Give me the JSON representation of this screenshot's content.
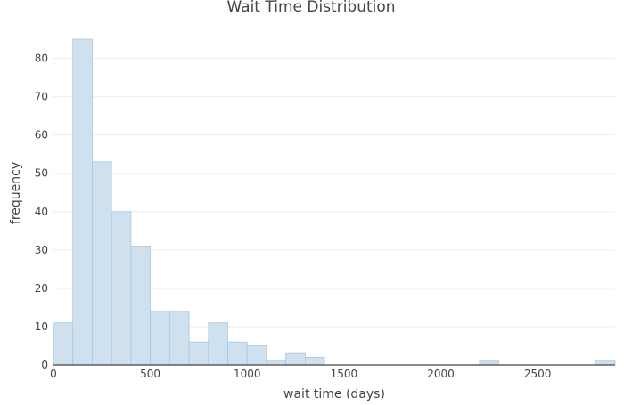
{
  "chart_data": {
    "type": "bar",
    "title": "Wait Time Distribution",
    "xlabel": "wait time (days)",
    "ylabel": "frequency",
    "bin_width": 100,
    "bins": [
      {
        "x0": 0,
        "x1": 100,
        "count": 11
      },
      {
        "x0": 100,
        "x1": 200,
        "count": 85
      },
      {
        "x0": 200,
        "x1": 300,
        "count": 53
      },
      {
        "x0": 300,
        "x1": 400,
        "count": 40
      },
      {
        "x0": 400,
        "x1": 500,
        "count": 31
      },
      {
        "x0": 500,
        "x1": 600,
        "count": 14
      },
      {
        "x0": 600,
        "x1": 700,
        "count": 14
      },
      {
        "x0": 700,
        "x1": 800,
        "count": 6
      },
      {
        "x0": 800,
        "x1": 900,
        "count": 11
      },
      {
        "x0": 900,
        "x1": 1000,
        "count": 6
      },
      {
        "x0": 1000,
        "x1": 1100,
        "count": 5
      },
      {
        "x0": 1100,
        "x1": 1200,
        "count": 1
      },
      {
        "x0": 1200,
        "x1": 1300,
        "count": 3
      },
      {
        "x0": 1300,
        "x1": 1400,
        "count": 2
      },
      {
        "x0": 2200,
        "x1": 2300,
        "count": 1
      },
      {
        "x0": 2800,
        "x1": 2900,
        "count": 1
      }
    ],
    "xlim": [
      0,
      2900
    ],
    "ylim": [
      0,
      85
    ],
    "x_ticks": [
      0,
      500,
      1000,
      1500,
      2000,
      2500
    ],
    "y_ticks": [
      0,
      10,
      20,
      30,
      40,
      50,
      60,
      70,
      80
    ],
    "grid": true,
    "colors": {
      "bar_fill": "#cfe1ee",
      "bar_stroke": "#a9c8de",
      "grid": "#eeeeee",
      "axis": "#444444"
    }
  }
}
